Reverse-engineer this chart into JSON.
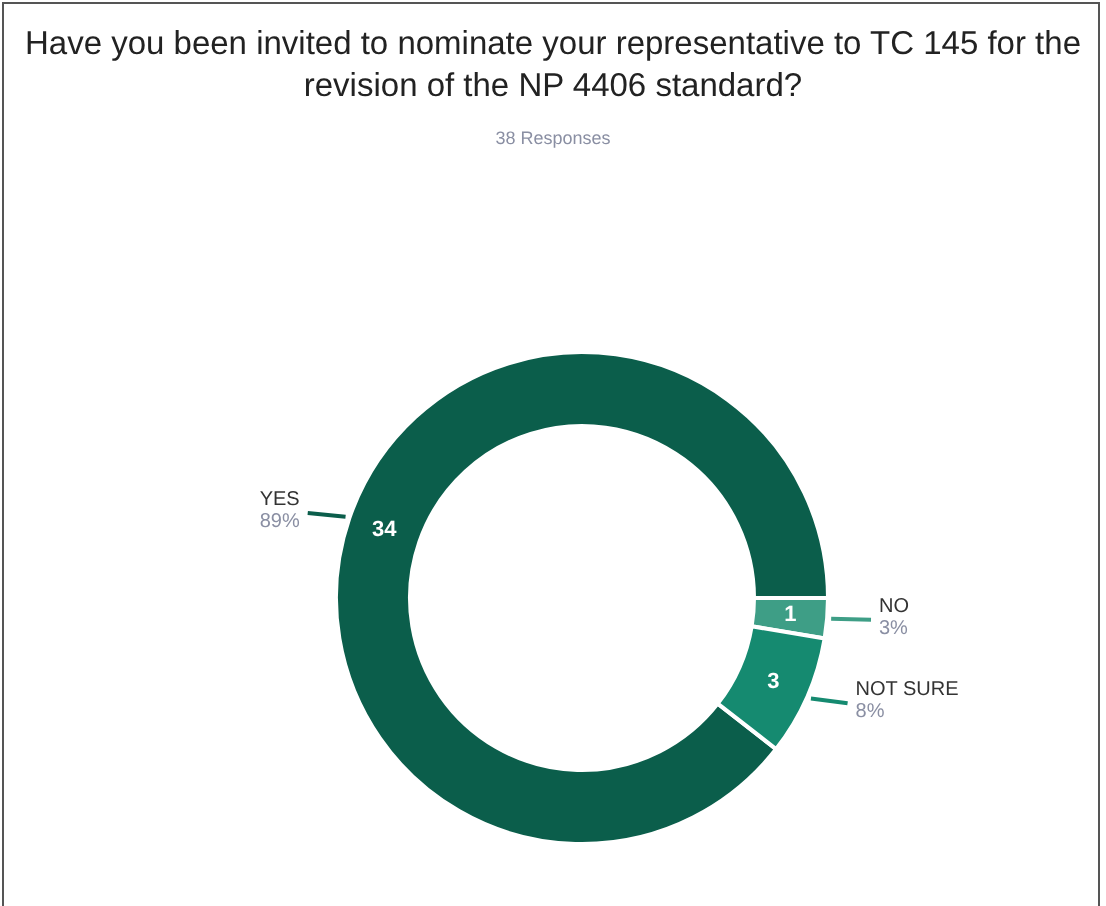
{
  "chart_data": {
    "type": "donut",
    "title": "Have you been invited to nominate your representative to TC 145 for the revision of the NP 4406 standard?",
    "subtitle": "38 Responses",
    "categories": [
      "YES",
      "NO",
      "NOT SURE"
    ],
    "values": [
      34,
      1,
      3
    ],
    "colors": [
      "#0b5e4b",
      "#3e9e86",
      "#158a70"
    ],
    "data_labels": true,
    "annotations": [
      {
        "text": "89%",
        "x": "YES"
      },
      {
        "text": "3%",
        "x": "NO"
      },
      {
        "text": "8%",
        "x": "NOT SURE"
      }
    ]
  }
}
